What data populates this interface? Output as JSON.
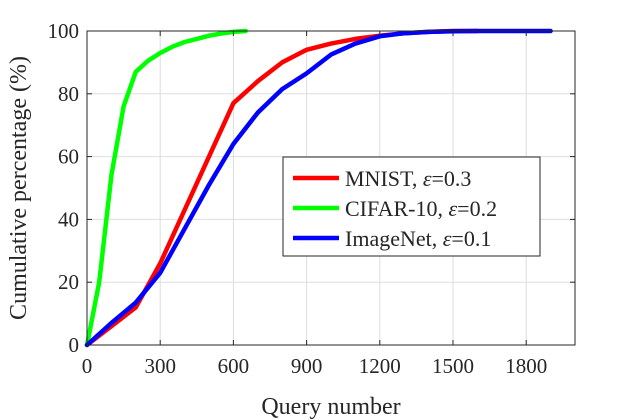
{
  "chart_data": {
    "type": "line",
    "title": "",
    "xlabel": "Query number",
    "ylabel": "Cumulative percentage (%)",
    "xlim": [
      0,
      2000
    ],
    "ylim": [
      0,
      100
    ],
    "xticks": [
      0,
      300,
      600,
      900,
      1200,
      1500,
      1800
    ],
    "yticks": [
      0,
      20,
      40,
      60,
      80,
      100
    ],
    "grid": true,
    "legend_position": "center-right",
    "series": [
      {
        "name": "MNIST",
        "label_prefix": "MNIST, ",
        "epsilon_symbol": "ε",
        "epsilon_value": "=0.3",
        "color": "#ff0000",
        "x": [
          0,
          100,
          200,
          300,
          400,
          500,
          600,
          700,
          800,
          900,
          1000,
          1100,
          1200,
          1300,
          1400,
          1500,
          1600
        ],
        "y": [
          0,
          6,
          12,
          26,
          43,
          60,
          77,
          84,
          90,
          94,
          96,
          97.5,
          98.5,
          99.3,
          99.7,
          100,
          100
        ]
      },
      {
        "name": "CIFAR-10",
        "label_prefix": "CIFAR-10, ",
        "epsilon_symbol": "ε",
        "epsilon_value": "=0.2",
        "color": "#00ff00",
        "x": [
          0,
          50,
          100,
          150,
          200,
          250,
          300,
          350,
          400,
          450,
          500,
          550,
          600,
          650
        ],
        "y": [
          0,
          20,
          54,
          76,
          87,
          90.5,
          93,
          95,
          96.5,
          97.5,
          98.5,
          99.2,
          99.7,
          100
        ]
      },
      {
        "name": "ImageNet",
        "label_prefix": "ImageNet, ",
        "epsilon_symbol": "ε",
        "epsilon_value": "=0.1",
        "color": "#0000ff",
        "x": [
          0,
          100,
          200,
          300,
          400,
          500,
          600,
          700,
          800,
          900,
          1000,
          1100,
          1200,
          1300,
          1400,
          1500,
          1600,
          1700,
          1800,
          1900
        ],
        "y": [
          0,
          7,
          13.5,
          23,
          37,
          51,
          64,
          74,
          81.5,
          86.5,
          92.5,
          96,
          98.3,
          99.3,
          99.7,
          99.9,
          100,
          100,
          100,
          100
        ]
      }
    ]
  }
}
